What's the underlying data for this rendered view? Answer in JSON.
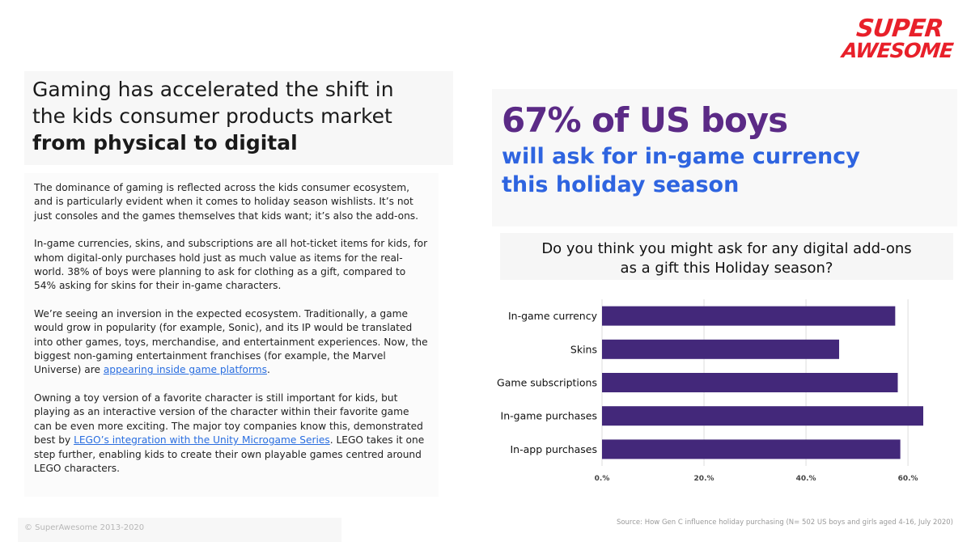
{
  "logo": {
    "line1": "SUPER",
    "line2": "AWESOME"
  },
  "headline": {
    "line1": "Gaming has accelerated the shift in",
    "line2": "the kids consumer products market",
    "bold": "from physical to digital"
  },
  "body": {
    "p1": "The dominance of gaming is reflected across the kids consumer ecosystem, and is particularly evident when it comes to holiday season wishlists. It’s not just consoles and the games themselves that kids want; it’s also the add-ons.",
    "p2": "In-game currencies, skins, and subscriptions are all hot-ticket items for kids, for whom digital-only purchases hold just as much value as items for the real-world. 38% of boys were planning to ask for clothing as a gift, compared to 54% asking for skins for their in-game characters.",
    "p3_pre": "We’re seeing an inversion in the expected ecosystem. Traditionally, a game would grow in popularity (for example, Sonic), and its IP would be translated into other games, toys, merchandise, and entertainment experiences. Now, the biggest non-gaming entertainment franchises (for example, the Marvel Universe) are ",
    "p3_link": "appearing inside game platforms",
    "p3_post": ".",
    "p4_pre": "Owning a toy version of a favorite character is still important for kids, but playing as an interactive version of the character within their favorite game can be even more exciting. The major toy companies know this, demonstrated best by ",
    "p4_link": "LEGO’s integration with the Unity Microgame Series",
    "p4_post": ". LEGO takes it one step further, enabling kids to create their own playable games centred around LEGO characters."
  },
  "copyright": "© SuperAwesome 2013-2020",
  "stat": {
    "big": "67% of US boys",
    "sub1": "will ask for in-game currency",
    "sub2": "this holiday season"
  },
  "source": "Source: How Gen C influence holiday purchasing (N= 502 US boys and girls aged 4-16, July 2020)",
  "chart_data": {
    "type": "bar",
    "orientation": "horizontal",
    "title_line1": "Do you think you might ask for any digital add-ons",
    "title_line2": "as a gift this Holiday season?",
    "categories": [
      "In-game currency",
      "Skins",
      "Game subscriptions",
      "In-game purchases",
      "In-app purchases"
    ],
    "values": [
      57.5,
      46.5,
      58,
      63,
      58.5
    ],
    "xlim": [
      0,
      63
    ],
    "xticks": [
      0,
      20,
      40,
      60
    ],
    "xtick_labels": [
      "0.%",
      "20.%",
      "40.%",
      "60.%"
    ],
    "bar_color": "#43287a",
    "grid": true
  }
}
